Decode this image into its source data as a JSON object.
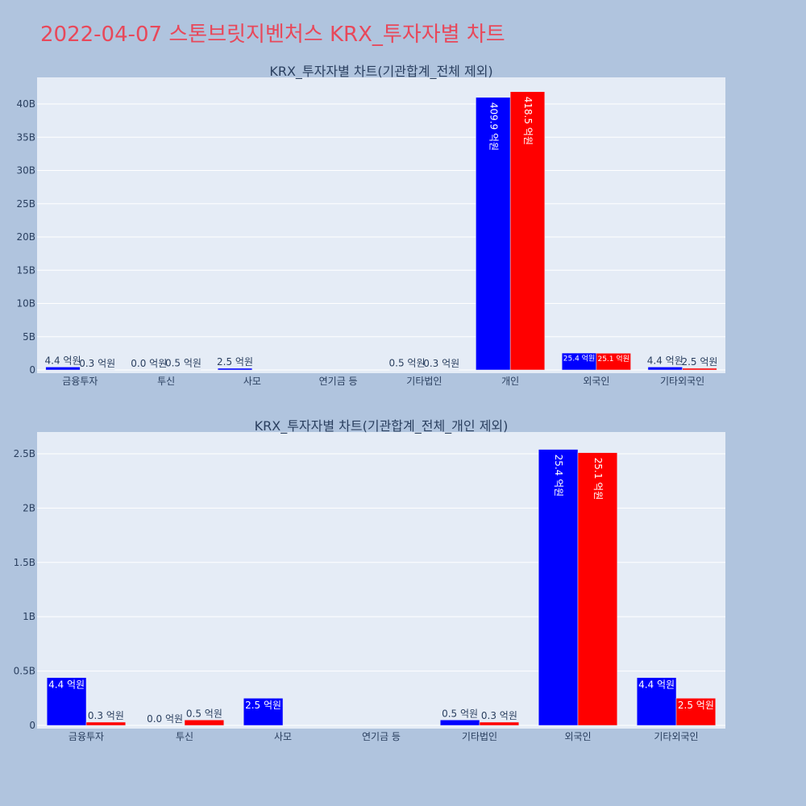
{
  "page": {
    "title": "2022-04-07 스톤브릿지벤처스 KRX_투자자별 차트"
  },
  "colors": {
    "background": "#b0c4de",
    "plot_bg": "#e5ecf6",
    "grid": "#ffffff",
    "title": "#e8485a",
    "buy": "#0000ff",
    "sell": "#ff0000"
  },
  "chart_data": [
    {
      "type": "bar",
      "title": "KRX_투자자별 차트(기관합계_전체 제외)",
      "categories": [
        "금융투자",
        "투신",
        "사모",
        "연기금 등",
        "기타법인",
        "개인",
        "외국인",
        "기타외국인"
      ],
      "series": [
        {
          "color": "#0000ff",
          "values": [
            440000000,
            0,
            250000000,
            0,
            50000000,
            40990000000,
            2540000000,
            440000000
          ],
          "labels": [
            "4.4 억원",
            "0.0 억원",
            "2.5 억원",
            "",
            "0.5 억원",
            "409.9 억원",
            "25.4 억원",
            "4.4 억원"
          ]
        },
        {
          "color": "#ff0000",
          "values": [
            30000000,
            50000000,
            0,
            0,
            30000000,
            41850000000,
            2510000000,
            250000000
          ],
          "labels": [
            "0.3 억원",
            "0.5 억원",
            "",
            "",
            "0.3 억원",
            "418.5 억원",
            "25.1 억원",
            "2.5 억원"
          ]
        }
      ],
      "ylim": [
        0,
        44000000000
      ],
      "yticks": [
        0,
        5000000000,
        10000000000,
        15000000000,
        20000000000,
        25000000000,
        30000000000,
        35000000000,
        40000000000
      ],
      "ytick_labels": [
        "0",
        "5B",
        "10B",
        "15B",
        "20B",
        "25B",
        "30B",
        "35B",
        "40B"
      ],
      "grid": true,
      "legend": "none"
    },
    {
      "type": "bar",
      "title": "KRX_투자자별 차트(기관합계_전체_개인 제외)",
      "categories": [
        "금융투자",
        "투신",
        "사모",
        "연기금 등",
        "기타법인",
        "외국인",
        "기타외국인"
      ],
      "series": [
        {
          "color": "#0000ff",
          "values": [
            440000000,
            0,
            250000000,
            0,
            50000000,
            2540000000,
            440000000
          ],
          "labels": [
            "4.4 억원",
            "0.0 억원",
            "2.5 억원",
            "",
            "0.5 억원",
            "25.4 억원",
            "4.4 억원"
          ]
        },
        {
          "color": "#ff0000",
          "values": [
            30000000,
            50000000,
            0,
            0,
            30000000,
            2510000000,
            250000000
          ],
          "labels": [
            "0.3 억원",
            "0.5 억원",
            "",
            "",
            "0.3 억원",
            "25.1 억원",
            "2.5 억원"
          ]
        }
      ],
      "ylim": [
        0,
        2700000000
      ],
      "yticks": [
        0,
        500000000,
        1000000000,
        1500000000,
        2000000000,
        2500000000
      ],
      "ytick_labels": [
        "0",
        "0.5B",
        "1B",
        "1.5B",
        "2B",
        "2.5B"
      ],
      "grid": true,
      "legend": "none"
    }
  ]
}
